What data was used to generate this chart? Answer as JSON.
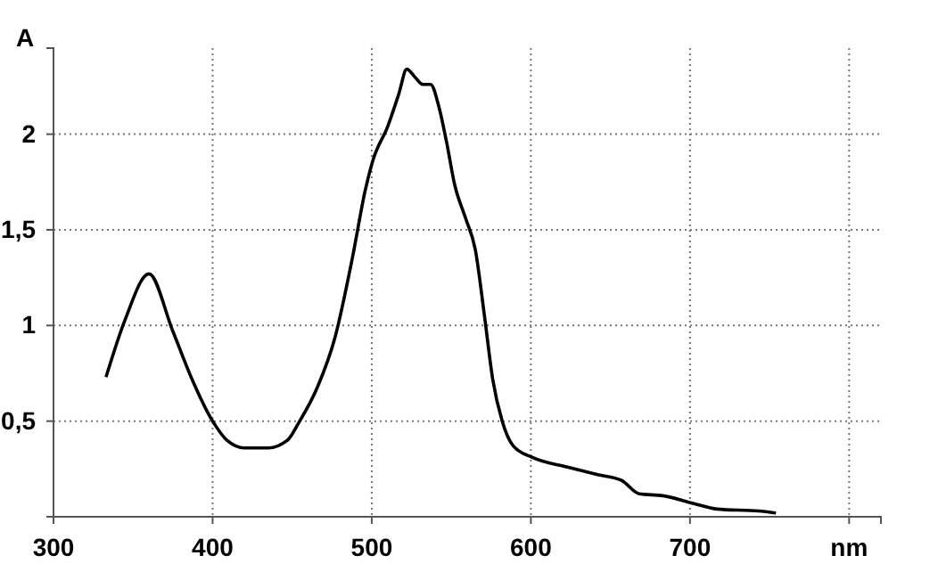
{
  "chart_data": {
    "type": "line",
    "xlabel": "nm",
    "ylabel": "A",
    "x": [
      333,
      345,
      360,
      375,
      387,
      400,
      409,
      420,
      435,
      447,
      454,
      466,
      477,
      488,
      496,
      501,
      510,
      517,
      522,
      527,
      532,
      537,
      542,
      547,
      552,
      559,
      565,
      571,
      576,
      582,
      589,
      601,
      623,
      642,
      657,
      668,
      683,
      702,
      717,
      743,
      754
    ],
    "series": [
      {
        "color": "#000000",
        "values": [
          0.73,
          1.03,
          1.27,
          0.97,
          0.72,
          0.5,
          0.4,
          0.36,
          0.36,
          0.4,
          0.49,
          0.68,
          0.94,
          1.36,
          1.71,
          1.87,
          2.04,
          2.21,
          2.34,
          2.3,
          2.26,
          2.26,
          2.15,
          1.96,
          1.74,
          1.56,
          1.4,
          1.04,
          0.72,
          0.5,
          0.37,
          0.31,
          0.26,
          0.22,
          0.19,
          0.12,
          0.11,
          0.07,
          0.04,
          0.03,
          0.02
        ]
      }
    ],
    "xlim": [
      300,
      820
    ],
    "ylim": [
      0,
      2.45
    ],
    "xticks": [
      300,
      400,
      500,
      600,
      700,
      {
        "value": 800,
        "label": null
      }
    ],
    "yticks": [
      {
        "value": 0.5,
        "label": "0,5"
      },
      1,
      {
        "value": 1.5,
        "label": "1,5"
      },
      2
    ],
    "grid": true,
    "line_style": "solid",
    "marker": "none"
  }
}
